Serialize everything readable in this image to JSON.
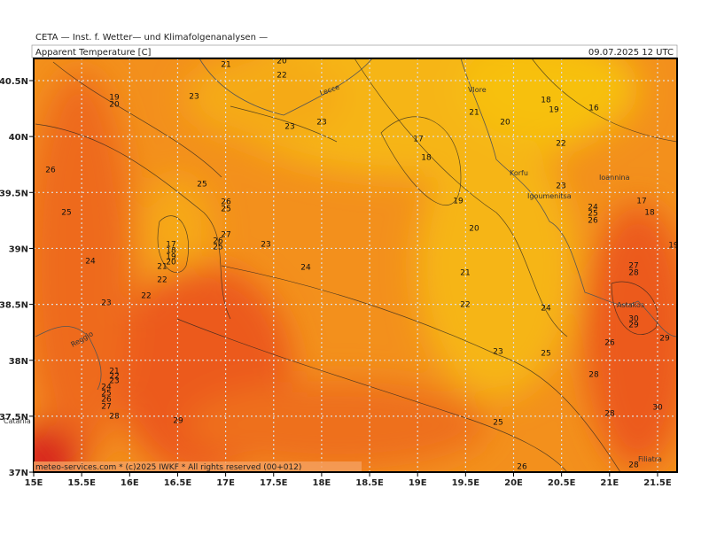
{
  "header": {
    "source": "CETA — Inst. f. Wetter— und Klimafolgenanalysen —",
    "parameter": "Apparent Temperature [C]",
    "valid": "09.07.2025 12 UTC"
  },
  "footer": "meteo-services.com * (c)2025 IWKF * All rights reserved (00+012)",
  "axes": {
    "lon_ticks": [
      "15E",
      "15.5E",
      "16E",
      "16.5E",
      "17E",
      "17.5E",
      "18E",
      "18.5E",
      "19E",
      "19.5E",
      "20E",
      "20.5E",
      "21E",
      "21.5E"
    ],
    "lat_ticks": [
      "40.5N",
      "40N",
      "39.5N",
      "39N",
      "38.5N",
      "38N",
      "37.5N",
      "37N"
    ]
  },
  "places": [
    "Lecce",
    "Vlore",
    "Korfu",
    "Igoumenitsa",
    "Ioannina",
    "Astakos",
    "Filiatra",
    "Catania",
    "Reggio"
  ],
  "contour_labels": [
    "21",
    "20",
    "22",
    "19",
    "20",
    "23",
    "23",
    "23",
    "17",
    "18",
    "21",
    "20",
    "18",
    "19",
    "16",
    "22",
    "23",
    "26",
    "25",
    "25",
    "26",
    "25",
    "27",
    "26",
    "25",
    "23",
    "17",
    "18",
    "19",
    "20",
    "21",
    "22",
    "22",
    "24",
    "23",
    "24",
    "19",
    "20",
    "21",
    "22",
    "24",
    "25",
    "26",
    "17",
    "18",
    "19",
    "27",
    "28",
    "24",
    "30",
    "29",
    "26",
    "29",
    "23",
    "25",
    "21",
    "22",
    "23",
    "24",
    "25",
    "26",
    "27",
    "28",
    "28",
    "29",
    "25",
    "28",
    "30",
    "26",
    "28"
  ]
}
